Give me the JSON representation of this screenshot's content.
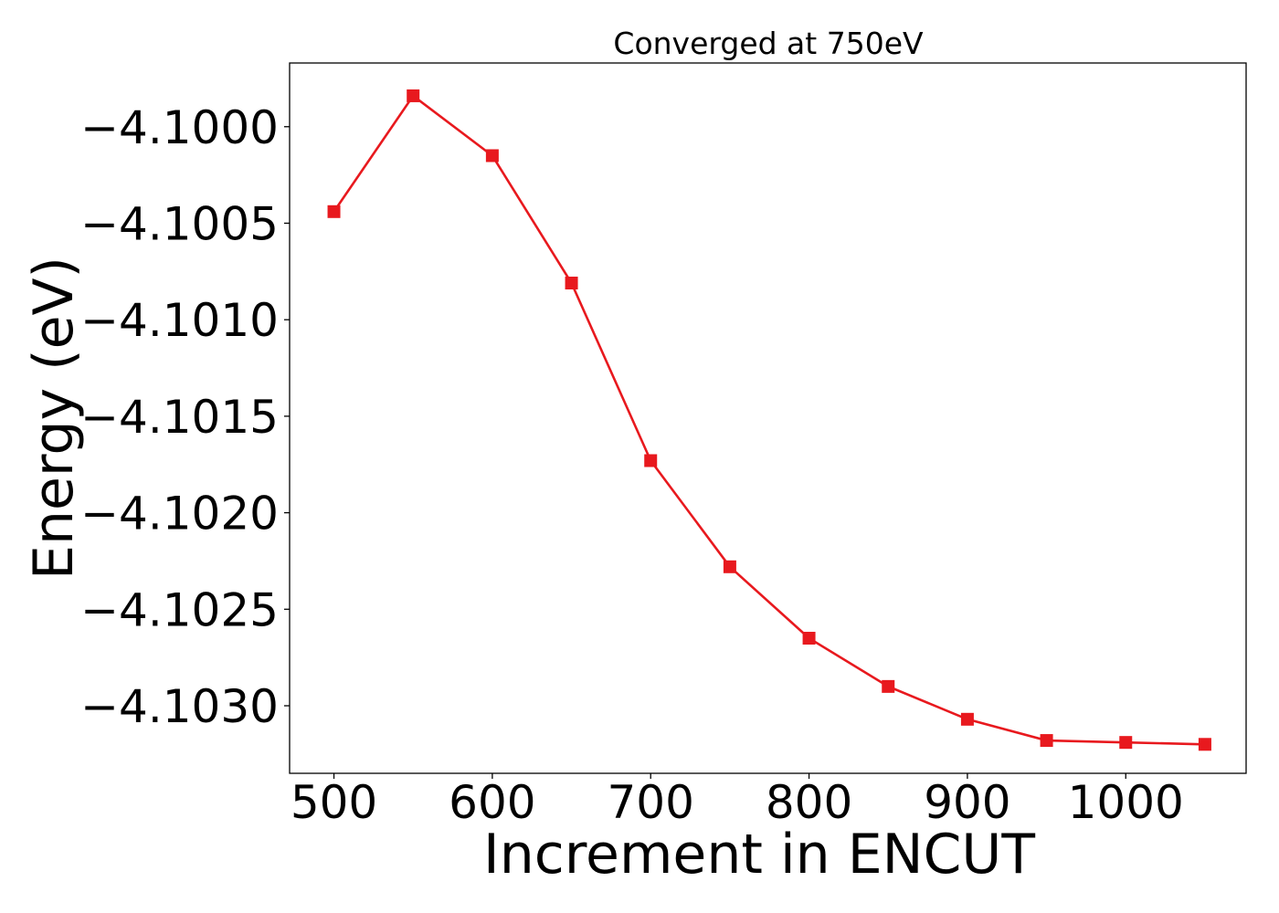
{
  "chart_data": {
    "type": "line",
    "title": "Converged at 750eV",
    "xlabel": "Increment in ENCUT",
    "ylabel": "Energy (eV)",
    "x": [
      500,
      550,
      600,
      650,
      700,
      750,
      800,
      850,
      900,
      950,
      1000,
      1050
    ],
    "series": [
      {
        "values": [
          -4.10044,
          -4.09984,
          -4.10015,
          -4.10081,
          -4.10173,
          -4.10228,
          -4.10265,
          -4.1029,
          -4.10307,
          -4.10318,
          -4.10319,
          -4.1032
        ],
        "color": "#e8191e",
        "marker": "square"
      }
    ],
    "xlim": [
      472,
      1076
    ],
    "ylim": [
      -4.10335,
      -4.09967
    ],
    "xticks": [
      500,
      600,
      700,
      800,
      900,
      1000
    ],
    "xtick_labels": [
      "500",
      "600",
      "700",
      "800",
      "900",
      "1000"
    ],
    "yticks": [
      -4.1,
      -4.1005,
      -4.101,
      -4.1015,
      -4.102,
      -4.1025,
      -4.103
    ],
    "ytick_labels": [
      "−4.1000",
      "−4.1005",
      "−4.1010",
      "−4.1015",
      "−4.1020",
      "−4.1025",
      "−4.1030"
    ],
    "grid": false,
    "legend": "none"
  }
}
